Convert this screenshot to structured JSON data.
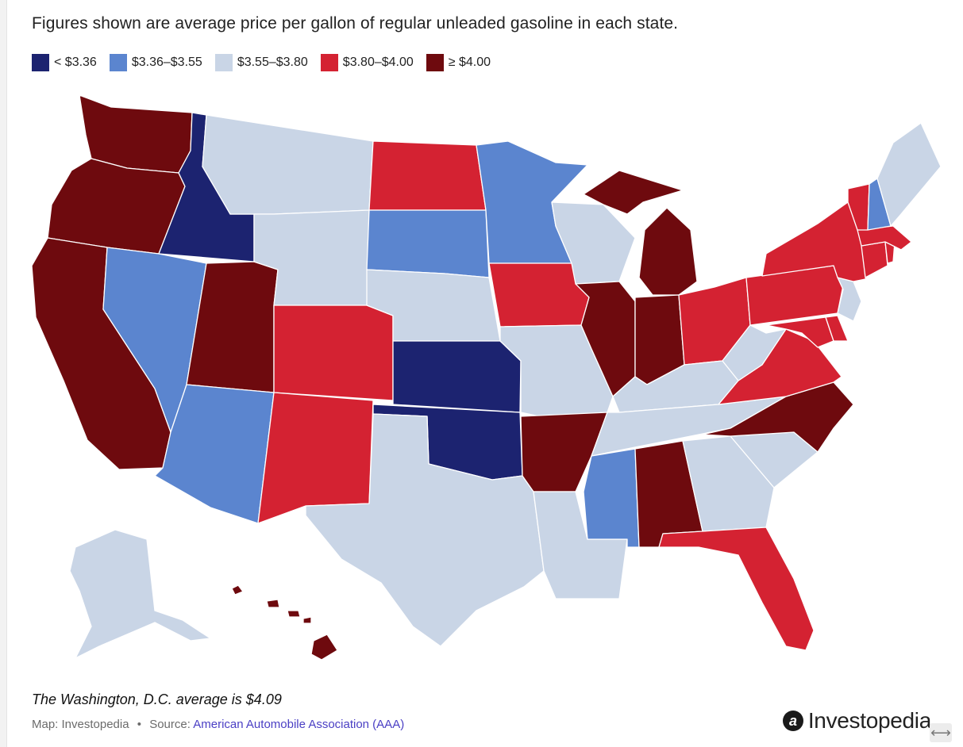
{
  "header": {
    "title": "Figures shown are average price per gallon of regular unleaded gasoline in each state."
  },
  "legend": {
    "items": [
      {
        "label": "< $3.36",
        "color": "#1c2370"
      },
      {
        "label": "$3.36–$3.55",
        "color": "#5b85cf"
      },
      {
        "label": "$3.55–$3.80",
        "color": "#c9d5e6"
      },
      {
        "label": "$3.80–$4.00",
        "color": "#d42232"
      },
      {
        "label": "≥ $4.00",
        "color": "#6e0a0e"
      }
    ]
  },
  "map": {
    "states": {
      "WA": "#6e0a0e",
      "OR": "#6e0a0e",
      "CA": "#6e0a0e",
      "ID": "#1c2370",
      "NV": "#5b85cf",
      "UT": "#6e0a0e",
      "AZ": "#5b85cf",
      "MT": "#c9d5e6",
      "WY": "#c9d5e6",
      "CO": "#d42232",
      "NM": "#d42232",
      "ND": "#d42232",
      "SD": "#5b85cf",
      "NE": "#c9d5e6",
      "KS": "#1c2370",
      "OK": "#1c2370",
      "TX": "#c9d5e6",
      "MN": "#5b85cf",
      "IA": "#d42232",
      "MO": "#c9d5e6",
      "AR": "#6e0a0e",
      "LA": "#c9d5e6",
      "WI": "#c9d5e6",
      "IL": "#6e0a0e",
      "MI": "#6e0a0e",
      "IN": "#6e0a0e",
      "OH": "#d42232",
      "KY": "#c9d5e6",
      "TN": "#c9d5e6",
      "MS": "#5b85cf",
      "AL": "#6e0a0e",
      "GA": "#c9d5e6",
      "FL": "#d42232",
      "SC": "#c9d5e6",
      "NC": "#6e0a0e",
      "VA": "#d42232",
      "WV": "#c9d5e6",
      "PA": "#d42232",
      "NY": "#d42232",
      "VT": "#d42232",
      "NH": "#5b85cf",
      "ME": "#c9d5e6",
      "MA": "#d42232",
      "CT": "#d42232",
      "RI": "#d42232",
      "NJ": "#c9d5e6",
      "DE": "#d42232",
      "MD": "#d42232",
      "AK": "#c9d5e6",
      "HI": "#6e0a0e"
    }
  },
  "footer": {
    "note": "The Washington, D.C. average is $4.09",
    "credit_map": "Map: Investopedia",
    "credit_sep": "•",
    "credit_source_label": "Source:",
    "credit_source_link": "American Automobile Association (AAA)",
    "brand": "Investopedia",
    "brand_mark": "a"
  }
}
